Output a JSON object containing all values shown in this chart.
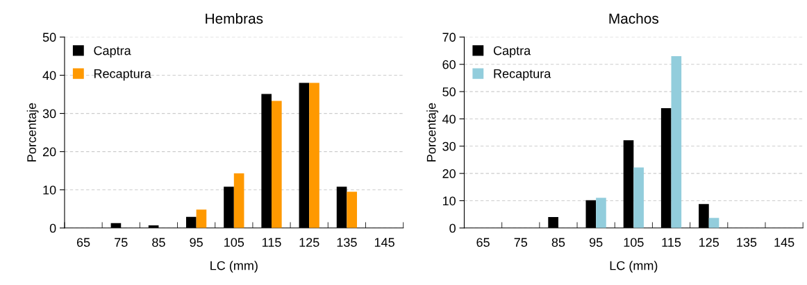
{
  "chart_data": [
    {
      "type": "bar",
      "title": "Hembras",
      "xlabel": "LC (mm)",
      "ylabel": "Porcentaje",
      "categories": [
        "65",
        "75",
        "85",
        "95",
        "105",
        "115",
        "125",
        "135",
        "145"
      ],
      "series": [
        {
          "name": "Captra",
          "color": "#000000",
          "values": [
            0,
            1.3,
            0.7,
            2.9,
            10.8,
            35.1,
            38,
            10.8,
            0
          ]
        },
        {
          "name": "Recaptura",
          "color": "#ff9900",
          "values": [
            0,
            0,
            0,
            4.8,
            14.3,
            33.3,
            38,
            9.5,
            0
          ]
        }
      ],
      "ylim": [
        0,
        50
      ],
      "yticks": [
        0,
        10,
        20,
        30,
        40,
        50
      ],
      "grid": "y",
      "legend": "top left"
    },
    {
      "type": "bar",
      "title": "Machos",
      "xlabel": "LC (mm)",
      "ylabel": "Porcentaje",
      "categories": [
        "65",
        "75",
        "85",
        "95",
        "105",
        "115",
        "125",
        "135",
        "145"
      ],
      "series": [
        {
          "name": "Captra",
          "color": "#000000",
          "values": [
            0,
            0,
            4,
            10.2,
            32.2,
            43.9,
            8.8,
            0,
            0
          ]
        },
        {
          "name": "Recaptura",
          "color": "#92cddc",
          "values": [
            0,
            0,
            0,
            11.1,
            22.2,
            63,
            3.7,
            0,
            0
          ]
        }
      ],
      "ylim": [
        0,
        70
      ],
      "yticks": [
        0,
        10,
        20,
        30,
        40,
        50,
        60,
        70
      ],
      "grid": "y",
      "legend": "top left"
    }
  ]
}
